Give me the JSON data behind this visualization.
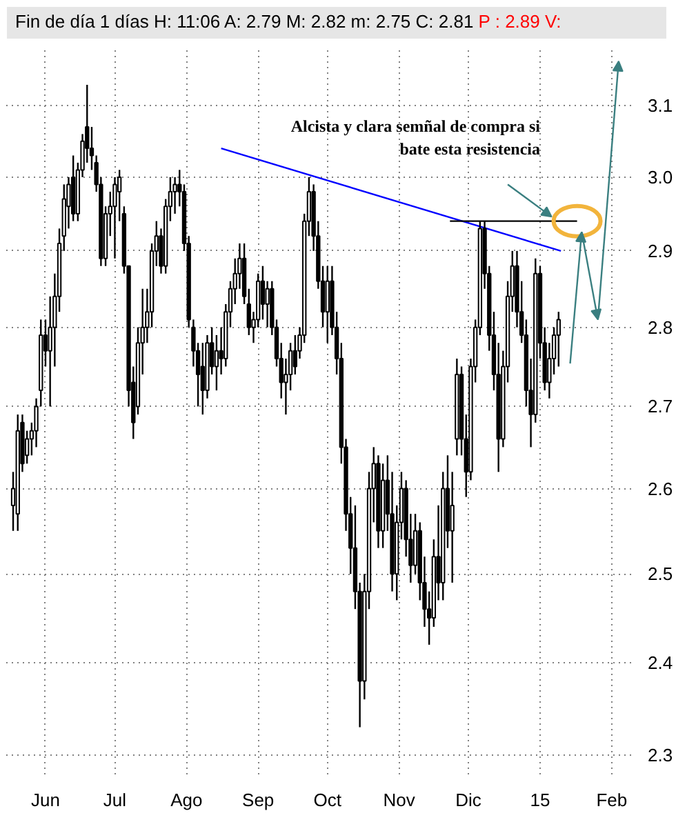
{
  "chart_data": {
    "type": "candlestick",
    "title": "Fin de día 1 días  H: 11:06  A: 2.79  M: 2.82  m: 2.75  C: 2.81",
    "subtitle": "P : 2.89  V:",
    "annotations": [
      "Alcista y clara semñal de compra si\nbate esta resistencia"
    ],
    "x": [
      "2014-05-18",
      "2014-05-20",
      "2014-05-22",
      "2014-05-24",
      "2014-05-26",
      "2014-05-28",
      "2014-05-30",
      "2014-06-01",
      "2014-06-03",
      "2014-06-05",
      "2014-06-07",
      "2014-06-09",
      "2014-06-11",
      "2014-06-13",
      "2014-06-15",
      "2014-06-17",
      "2014-06-19",
      "2014-06-21",
      "2014-06-23",
      "2014-06-25",
      "2014-06-27",
      "2014-06-29",
      "2014-07-01",
      "2014-07-03",
      "2014-07-05",
      "2014-07-07",
      "2014-07-09",
      "2014-07-11",
      "2014-07-13",
      "2014-07-15",
      "2014-07-17",
      "2014-07-19",
      "2014-07-21",
      "2014-07-23",
      "2014-07-25",
      "2014-07-27",
      "2014-07-29",
      "2014-07-31",
      "2014-08-02",
      "2014-08-04",
      "2014-08-06",
      "2014-08-08",
      "2014-08-10",
      "2014-08-12",
      "2014-08-14",
      "2014-08-16",
      "2014-08-18",
      "2014-08-20",
      "2014-08-22",
      "2014-08-24",
      "2014-08-26",
      "2014-08-28",
      "2014-08-30",
      "2014-09-01",
      "2014-09-03",
      "2014-09-05",
      "2014-09-07",
      "2014-09-09",
      "2014-09-11",
      "2014-09-13",
      "2014-09-15",
      "2014-09-17",
      "2014-09-19",
      "2014-09-21",
      "2014-09-23",
      "2014-09-25",
      "2014-09-27",
      "2014-09-29",
      "2014-10-01",
      "2014-10-03",
      "2014-10-05",
      "2014-10-07",
      "2014-10-09",
      "2014-10-11",
      "2014-10-13",
      "2014-10-15",
      "2014-10-17",
      "2014-10-19",
      "2014-10-21",
      "2014-10-23",
      "2014-10-25",
      "2014-10-27",
      "2014-10-29",
      "2014-10-31",
      "2014-11-02",
      "2014-11-04",
      "2014-11-06",
      "2014-11-08",
      "2014-11-10",
      "2014-11-12",
      "2014-11-14",
      "2014-11-16",
      "2014-11-18",
      "2014-11-20",
      "2014-11-22",
      "2014-11-24",
      "2014-11-26",
      "2014-11-28",
      "2014-11-30",
      "2014-12-02",
      "2014-12-04",
      "2014-12-06",
      "2014-12-08",
      "2014-12-10",
      "2014-12-12",
      "2014-12-14",
      "2014-12-16",
      "2014-12-18",
      "2014-12-20",
      "2014-12-22",
      "2014-12-24",
      "2014-12-26",
      "2014-12-28",
      "2014-12-30",
      "2015-01-01",
      "2015-01-03",
      "2015-01-05",
      "2015-01-07",
      "2015-01-09"
    ],
    "ohlc": [
      [
        2.58,
        2.62,
        2.55,
        2.6
      ],
      [
        2.57,
        2.69,
        2.55,
        2.67
      ],
      [
        2.68,
        2.69,
        2.62,
        2.63
      ],
      [
        2.64,
        2.67,
        2.63,
        2.66
      ],
      [
        2.66,
        2.68,
        2.64,
        2.67
      ],
      [
        2.67,
        2.71,
        2.65,
        2.7
      ],
      [
        2.72,
        2.81,
        2.7,
        2.79
      ],
      [
        2.79,
        2.81,
        2.75,
        2.77
      ],
      [
        2.77,
        2.84,
        2.7,
        2.8
      ],
      [
        2.8,
        2.87,
        2.75,
        2.84
      ],
      [
        2.84,
        2.93,
        2.82,
        2.91
      ],
      [
        2.92,
        2.99,
        2.9,
        2.97
      ],
      [
        2.96,
        3.0,
        2.93,
        2.99
      ],
      [
        3.0,
        3.03,
        2.94,
        2.95
      ],
      [
        2.95,
        3.02,
        2.94,
        3.01
      ],
      [
        3.01,
        3.06,
        3.0,
        3.05
      ],
      [
        3.07,
        3.13,
        3.02,
        3.04
      ],
      [
        3.04,
        3.07,
        3.01,
        3.03
      ],
      [
        3.02,
        3.03,
        2.98,
        2.99
      ],
      [
        2.99,
        3.0,
        2.88,
        2.89
      ],
      [
        2.89,
        2.96,
        2.88,
        2.95
      ],
      [
        2.95,
        2.98,
        2.92,
        2.96
      ],
      [
        2.96,
        3.0,
        2.89,
        2.99
      ],
      [
        2.98,
        3.01,
        2.94,
        3.0
      ],
      [
        2.95,
        2.96,
        2.87,
        2.88
      ],
      [
        2.88,
        2.88,
        2.7,
        2.72
      ],
      [
        2.73,
        2.75,
        2.66,
        2.68
      ],
      [
        2.7,
        2.8,
        2.69,
        2.78
      ],
      [
        2.78,
        2.85,
        2.74,
        2.8
      ],
      [
        2.8,
        2.85,
        2.78,
        2.82
      ],
      [
        2.82,
        2.91,
        2.8,
        2.9
      ],
      [
        2.9,
        2.94,
        2.88,
        2.92
      ],
      [
        2.92,
        2.93,
        2.87,
        2.88
      ],
      [
        2.88,
        2.97,
        2.87,
        2.96
      ],
      [
        2.96,
        3.0,
        2.94,
        2.98
      ],
      [
        2.98,
        3.0,
        2.95,
        2.99
      ],
      [
        2.99,
        3.01,
        2.96,
        2.98
      ],
      [
        2.98,
        2.99,
        2.9,
        2.91
      ],
      [
        2.91,
        2.92,
        2.8,
        2.81
      ],
      [
        2.8,
        2.81,
        2.75,
        2.77
      ],
      [
        2.77,
        2.78,
        2.7,
        2.74
      ],
      [
        2.75,
        2.78,
        2.69,
        2.72
      ],
      [
        2.72,
        2.79,
        2.71,
        2.78
      ],
      [
        2.78,
        2.8,
        2.74,
        2.75
      ],
      [
        2.75,
        2.79,
        2.72,
        2.77
      ],
      [
        2.77,
        2.8,
        2.74,
        2.76
      ],
      [
        2.76,
        2.83,
        2.75,
        2.82
      ],
      [
        2.82,
        2.86,
        2.8,
        2.85
      ],
      [
        2.85,
        2.89,
        2.83,
        2.87
      ],
      [
        2.87,
        2.91,
        2.85,
        2.89
      ],
      [
        2.89,
        2.91,
        2.83,
        2.84
      ],
      [
        2.83,
        2.85,
        2.79,
        2.8
      ],
      [
        2.8,
        2.82,
        2.78,
        2.81
      ],
      [
        2.81,
        2.87,
        2.8,
        2.86
      ],
      [
        2.86,
        2.88,
        2.81,
        2.83
      ],
      [
        2.83,
        2.86,
        2.8,
        2.85
      ],
      [
        2.85,
        2.86,
        2.79,
        2.8
      ],
      [
        2.8,
        2.81,
        2.75,
        2.76
      ],
      [
        2.76,
        2.78,
        2.71,
        2.73
      ],
      [
        2.73,
        2.76,
        2.69,
        2.74
      ],
      [
        2.74,
        2.78,
        2.72,
        2.77
      ],
      [
        2.77,
        2.79,
        2.74,
        2.75
      ],
      [
        2.77,
        2.8,
        2.76,
        2.79
      ],
      [
        2.79,
        2.95,
        2.78,
        2.94
      ],
      [
        2.94,
        3.0,
        2.92,
        2.98
      ],
      [
        2.98,
        2.99,
        2.9,
        2.92
      ],
      [
        2.92,
        2.94,
        2.85,
        2.86
      ],
      [
        2.86,
        2.88,
        2.8,
        2.82
      ],
      [
        2.82,
        2.88,
        2.78,
        2.86
      ],
      [
        2.86,
        2.88,
        2.79,
        2.8
      ],
      [
        2.8,
        2.82,
        2.74,
        2.76
      ],
      [
        2.76,
        2.78,
        2.63,
        2.65
      ],
      [
        2.65,
        2.66,
        2.55,
        2.57
      ],
      [
        2.57,
        2.59,
        2.5,
        2.53
      ],
      [
        2.53,
        2.58,
        2.46,
        2.48
      ],
      [
        2.48,
        2.49,
        2.33,
        2.38
      ],
      [
        2.38,
        2.5,
        2.36,
        2.48
      ],
      [
        2.48,
        2.62,
        2.46,
        2.6
      ],
      [
        2.6,
        2.65,
        2.56,
        2.63
      ],
      [
        2.63,
        2.64,
        2.53,
        2.55
      ],
      [
        2.55,
        2.63,
        2.53,
        2.61
      ],
      [
        2.61,
        2.64,
        2.55,
        2.57
      ],
      [
        2.57,
        2.62,
        2.48,
        2.5
      ],
      [
        2.5,
        2.58,
        2.47,
        2.56
      ],
      [
        2.56,
        2.62,
        2.54,
        2.6
      ],
      [
        2.6,
        2.61,
        2.52,
        2.54
      ],
      [
        2.54,
        2.57,
        2.49,
        2.51
      ],
      [
        2.51,
        2.57,
        2.5,
        2.55
      ],
      [
        2.55,
        2.56,
        2.47,
        2.49
      ],
      [
        2.49,
        2.52,
        2.44,
        2.46
      ],
      [
        2.46,
        2.48,
        2.42,
        2.45
      ],
      [
        2.45,
        2.54,
        2.44,
        2.52
      ],
      [
        2.52,
        2.58,
        2.47,
        2.49
      ],
      [
        2.49,
        2.62,
        2.47,
        2.6
      ],
      [
        2.6,
        2.64,
        2.53,
        2.55
      ],
      [
        2.55,
        2.62,
        2.49,
        2.58
      ],
      [
        2.66,
        2.76,
        2.64,
        2.74
      ],
      [
        2.74,
        2.75,
        2.64,
        2.66
      ],
      [
        2.66,
        2.69,
        2.59,
        2.62
      ],
      [
        2.62,
        2.76,
        2.61,
        2.75
      ],
      [
        2.75,
        2.81,
        2.73,
        2.8
      ],
      [
        2.8,
        2.94,
        2.79,
        2.93
      ],
      [
        2.93,
        2.94,
        2.85,
        2.87
      ],
      [
        2.87,
        2.88,
        2.77,
        2.79
      ],
      [
        2.79,
        2.82,
        2.72,
        2.74
      ],
      [
        2.74,
        2.78,
        2.62,
        2.66
      ],
      [
        2.66,
        2.77,
        2.65,
        2.75
      ],
      [
        2.75,
        2.86,
        2.73,
        2.84
      ],
      [
        2.84,
        2.9,
        2.82,
        2.88
      ],
      [
        2.88,
        2.9,
        2.8,
        2.82
      ],
      [
        2.82,
        2.86,
        2.78,
        2.79
      ],
      [
        2.79,
        2.81,
        2.7,
        2.72
      ],
      [
        2.72,
        2.76,
        2.65,
        2.69
      ],
      [
        2.69,
        2.89,
        2.68,
        2.87
      ],
      [
        2.87,
        2.88,
        2.76,
        2.78
      ],
      [
        2.78,
        2.8,
        2.72,
        2.73
      ],
      [
        2.73,
        2.78,
        2.71,
        2.76
      ],
      [
        2.76,
        2.8,
        2.74,
        2.79
      ],
      [
        2.79,
        2.82,
        2.75,
        2.81
      ]
    ],
    "series": [
      {
        "type": "line",
        "color": "#0000ff",
        "x": [
          "2014-08-16",
          "2015-01-10"
        ],
        "values": [
          3.04,
          2.9
        ]
      },
      {
        "type": "line",
        "color": "#000000",
        "x": [
          "2014-11-23",
          "2015-01-17"
        ],
        "values": [
          2.94,
          2.94
        ]
      }
    ],
    "log": true,
    "xlim": [
      "2014-05-15",
      "2015-02-10"
    ],
    "xticks": [
      {
        "value": "2014-06-01",
        "label": "Jun"
      },
      {
        "value": "2014-07-01",
        "label": "Jul"
      },
      {
        "value": "2014-08-01",
        "label": "Ago"
      },
      {
        "value": "2014-09-01",
        "label": "Sep"
      },
      {
        "value": "2014-10-01",
        "label": "Oct"
      },
      {
        "value": "2014-11-01",
        "label": "Nov"
      },
      {
        "value": "2014-12-01",
        "label": "Dic"
      },
      {
        "value": "2015-01-01",
        "label": "15"
      },
      {
        "value": "2015-02-01",
        "label": "Feb"
      }
    ],
    "ylim": [
      2.28,
      3.18
    ],
    "yticks": [
      2.3,
      2.4,
      2.5,
      2.6,
      2.7,
      2.8,
      2.9,
      {
        "value": 3,
        "label": "3.0"
      },
      3.1
    ],
    "grid": true
  }
}
